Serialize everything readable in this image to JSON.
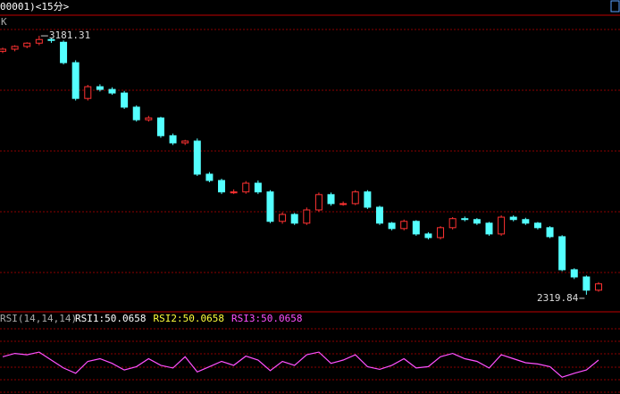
{
  "chart_data": [
    {
      "type": "candlestick",
      "title": "00001)<15分>",
      "panel_label": "K",
      "open": [
        3130,
        3137,
        3146,
        3157,
        3169,
        3160,
        3092,
        2973,
        3012,
        3003,
        2991,
        2944,
        2902,
        2908,
        2849,
        2825,
        2831,
        2721,
        2700,
        2662,
        2662,
        2691,
        2662,
        2564,
        2587,
        2558,
        2602,
        2653,
        2623,
        2623,
        2662,
        2611,
        2558,
        2540,
        2564,
        2522,
        2510,
        2543,
        2573,
        2570,
        2558,
        2522,
        2578,
        2570,
        2558,
        2543,
        2513,
        2403,
        2379,
        2335
      ],
      "high": [
        3142,
        3150,
        3160,
        3181.31,
        3175,
        3166,
        3100,
        3018,
        3020,
        3010,
        2998,
        2950,
        2915,
        2912,
        2856,
        2835,
        2840,
        2728,
        2706,
        2670,
        2698,
        2700,
        2668,
        2594,
        2592,
        2610,
        2660,
        2660,
        2630,
        2668,
        2668,
        2616,
        2562,
        2570,
        2568,
        2528,
        2548,
        2578,
        2580,
        2575,
        2562,
        2584,
        2584,
        2576,
        2562,
        2548,
        2518,
        2408,
        2384,
        2362
      ],
      "low": [
        3124,
        3130,
        3140,
        3150,
        3158,
        3086,
        2966,
        2966,
        2996,
        2985,
        2938,
        2896,
        2896,
        2842,
        2818,
        2818,
        2715,
        2694,
        2655,
        2655,
        2656,
        2655,
        2558,
        2556,
        2552,
        2552,
        2596,
        2616,
        2616,
        2618,
        2605,
        2552,
        2534,
        2534,
        2516,
        2504,
        2504,
        2537,
        2564,
        2552,
        2516,
        2516,
        2564,
        2552,
        2537,
        2508,
        2398,
        2372,
        2319.84,
        2330
      ],
      "close": [
        3137,
        3146,
        3157,
        3169,
        3166,
        3092,
        2973,
        3012,
        3003,
        2991,
        2944,
        2902,
        2908,
        2849,
        2825,
        2831,
        2721,
        2700,
        2662,
        2662,
        2691,
        2662,
        2564,
        2587,
        2558,
        2602,
        2653,
        2623,
        2623,
        2662,
        2611,
        2558,
        2540,
        2564,
        2522,
        2510,
        2543,
        2573,
        2570,
        2558,
        2522,
        2578,
        2570,
        2558,
        2543,
        2513,
        2403,
        2379,
        2335,
        2356
      ],
      "ylim": [
        2266,
        3247
      ],
      "up_color": "#ff3232",
      "down_color": "#54ffff"
    },
    {
      "type": "line",
      "title": "RSI(14,14,14)",
      "legend": [
        {
          "name": "RSI1:50.0658",
          "color": "#ffffff"
        },
        {
          "name": "RSI2:50.0658",
          "color": "#ffff3c"
        },
        {
          "name": "RSI3:50.0658",
          "color": "#ff50ff"
        }
      ],
      "values": [
        55,
        60,
        58,
        62,
        50,
        38,
        30,
        48,
        52,
        45,
        35,
        40,
        52,
        42,
        38,
        55,
        32,
        40,
        48,
        42,
        56,
        50,
        34,
        48,
        42,
        58,
        62,
        45,
        50,
        58,
        40,
        36,
        42,
        52,
        38,
        40,
        55,
        60,
        52,
        48,
        38,
        58,
        52,
        46,
        44,
        40,
        24,
        30,
        35,
        50
      ],
      "ylim": [
        0,
        100
      ],
      "color": "#ff50ff"
    }
  ]
}
